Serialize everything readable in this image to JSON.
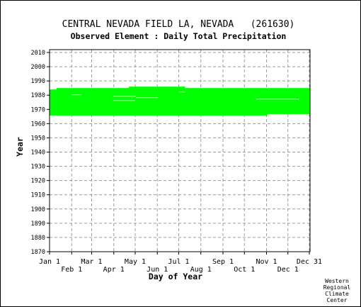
{
  "chart_data": {
    "type": "heatmap",
    "title": "CENTRAL NEVADA FIELD LA, NEVADA   (261630)",
    "subtitle": "Observed Element : Daily Total Precipitation",
    "xlabel": "Day of Year",
    "ylabel": "Year",
    "x_ticks_upper": [
      {
        "label": "Jan 1",
        "day": 1
      },
      {
        "label": "Mar 1",
        "day": 60
      },
      {
        "label": "May 1",
        "day": 121
      },
      {
        "label": "Jul 1",
        "day": 182
      },
      {
        "label": "Sep 1",
        "day": 244
      },
      {
        "label": "Nov 1",
        "day": 305
      },
      {
        "label": "Dec 31",
        "day": 365
      }
    ],
    "x_ticks_lower": [
      {
        "label": "Feb 1",
        "day": 32
      },
      {
        "label": "Apr 1",
        "day": 91
      },
      {
        "label": "Jun 1",
        "day": 152
      },
      {
        "label": "Aug 1",
        "day": 213
      },
      {
        "label": "Oct 1",
        "day": 274
      },
      {
        "label": "Dec 1",
        "day": 335
      }
    ],
    "y_ticks": [
      1870,
      1880,
      1890,
      1900,
      1910,
      1920,
      1930,
      1940,
      1950,
      1960,
      1970,
      1980,
      1990,
      2000,
      2010
    ],
    "xlim": [
      1,
      366
    ],
    "ylim": [
      1870,
      2012
    ],
    "grid": true,
    "data_color": "#00ff00",
    "series": [
      {
        "values": [
          [
            1,
            1966,
            1985
          ],
          [
            1,
            1966,
            1967
          ],
          [
            365,
            1964,
            1965
          ]
        ]
      }
    ],
    "coverage": {
      "start_year": 1966,
      "end_year": 1985,
      "data_rows": [
        {
          "year": 1966,
          "start_day": 1,
          "end_day": 305
        },
        {
          "year": 1967,
          "start_day": 1,
          "end_day": 365
        },
        {
          "year": 1968,
          "start_day": 1,
          "end_day": 365
        },
        {
          "year": 1969,
          "start_day": 1,
          "end_day": 365
        },
        {
          "year": 1970,
          "start_day": 1,
          "end_day": 365
        },
        {
          "year": 1971,
          "start_day": 1,
          "end_day": 365
        },
        {
          "year": 1972,
          "start_day": 1,
          "end_day": 365
        },
        {
          "year": 1973,
          "start_day": 1,
          "end_day": 365
        },
        {
          "year": 1974,
          "start_day": 1,
          "end_day": 365
        },
        {
          "year": 1975,
          "start_day": 1,
          "end_day": 365
        },
        {
          "year": 1976,
          "start_day": 1,
          "end_day": 365
        },
        {
          "year": 1977,
          "start_day": 1,
          "end_day": 365
        },
        {
          "year": 1978,
          "start_day": 1,
          "end_day": 365
        },
        {
          "year": 1979,
          "start_day": 1,
          "end_day": 365
        },
        {
          "year": 1980,
          "start_day": 1,
          "end_day": 365
        },
        {
          "year": 1981,
          "start_day": 1,
          "end_day": 365
        },
        {
          "year": 1982,
          "start_day": 1,
          "end_day": 365
        },
        {
          "year": 1983,
          "start_day": 1,
          "end_day": 365
        },
        {
          "year": 1984,
          "start_day": 11,
          "end_day": 365
        },
        {
          "year": 1985,
          "start_day": 112,
          "end_day": 190
        }
      ],
      "gaps": [
        {
          "year": 1976,
          "start_day": 90,
          "end_day": 120
        },
        {
          "year": 1977,
          "start_day": 290,
          "end_day": 350
        },
        {
          "year": 1978,
          "start_day": 122,
          "end_day": 152
        },
        {
          "year": 1979,
          "start_day": 90,
          "end_day": 121
        },
        {
          "year": 1980,
          "start_day": 32,
          "end_day": 45
        },
        {
          "year": 1982,
          "start_day": 182,
          "end_day": 190
        }
      ]
    }
  },
  "credit": [
    "Western",
    "Regional",
    "Climate",
    "Center"
  ]
}
